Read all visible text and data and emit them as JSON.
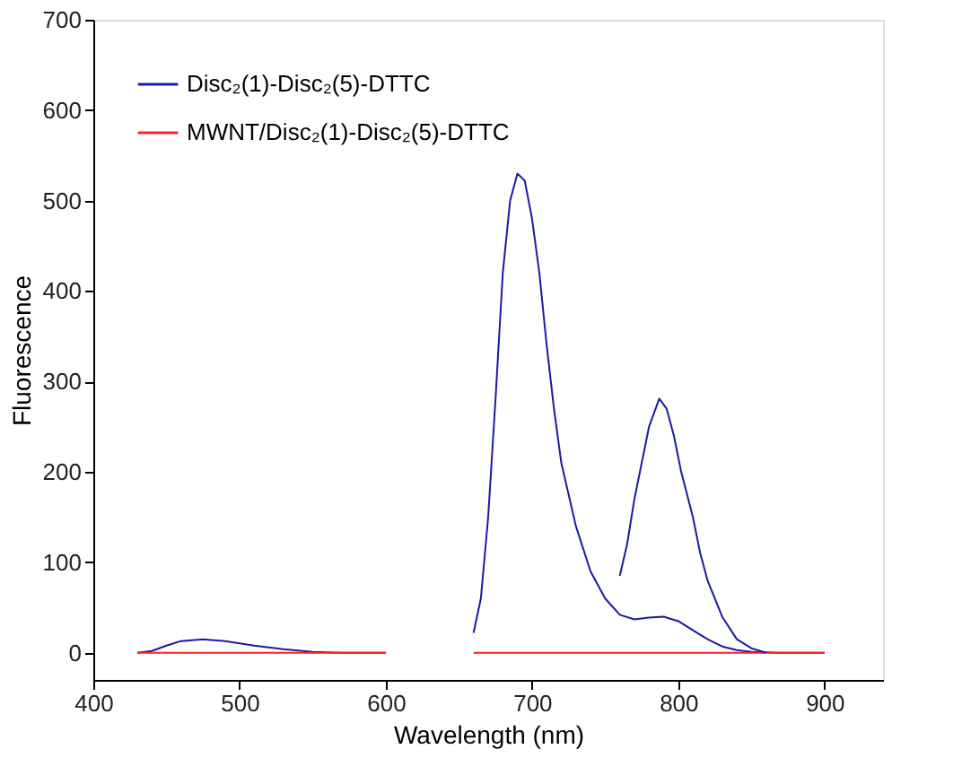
{
  "chart_data": {
    "type": "line",
    "xlabel": "Wavelength (nm)",
    "ylabel": "Fluorescence",
    "xlim": [
      400,
      940
    ],
    "xticks": [
      400,
      500,
      600,
      700,
      800,
      900
    ],
    "ylim": [
      -30,
      700
    ],
    "yticks": [
      0,
      100,
      200,
      300,
      400,
      500,
      600,
      700
    ],
    "grid": false,
    "legend": "top left",
    "marker": "none",
    "line_style": "solid",
    "series": [
      {
        "name": "Disc₂(1)-Disc₂(5)-DTTC",
        "color": "#1a1aa6",
        "x": [
          430,
          440,
          450,
          460,
          475,
          490,
          510,
          530,
          550,
          570,
          600,
          630,
          660,
          665,
          670,
          675,
          680,
          685,
          690,
          695,
          700,
          705,
          710,
          715,
          720,
          730,
          740,
          750,
          760,
          770,
          780,
          790,
          800,
          810,
          820,
          830,
          840,
          850,
          870,
          900
        ],
        "values": [
          0,
          2,
          8,
          13,
          15,
          13,
          8,
          4,
          1,
          0,
          0,
          null,
          22,
          60,
          150,
          280,
          420,
          500,
          530,
          522,
          480,
          420,
          340,
          270,
          210,
          140,
          90,
          60,
          42,
          37,
          39,
          40,
          35,
          25,
          15,
          7,
          3,
          1,
          0,
          0
        ]
      },
      {
        "name": "MWNT/Disc₂(1)-Disc₂(5)-DTTC",
        "color": "#ff2020",
        "x": [
          430,
          600,
          630,
          660,
          900
        ],
        "values": [
          0,
          0,
          null,
          0,
          0
        ]
      },
      {
        "color": "#1a1aa6",
        "x": [
          760,
          765,
          770,
          775,
          780,
          787,
          792,
          797,
          802,
          810,
          815,
          820,
          830,
          840,
          850,
          860
        ],
        "values": [
          85,
          120,
          170,
          210,
          250,
          281,
          270,
          240,
          200,
          150,
          110,
          80,
          40,
          15,
          5,
          0
        ]
      }
    ]
  }
}
